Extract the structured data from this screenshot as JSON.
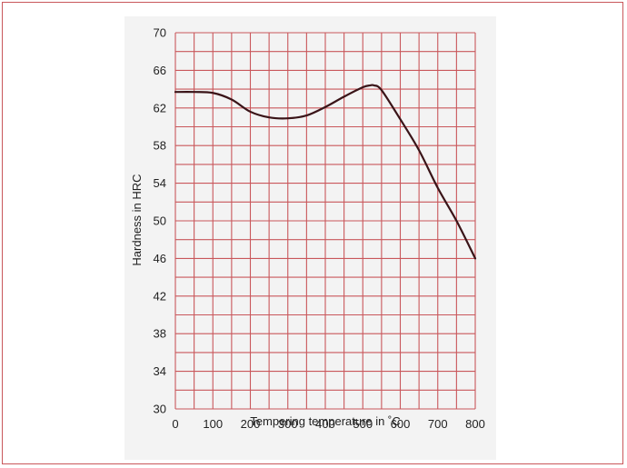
{
  "chart_data": {
    "type": "line",
    "xlabel": "Tempering temperature in ˚C",
    "ylabel": "Hardness in HRC",
    "xlim": [
      0,
      800
    ],
    "ylim": [
      30,
      70
    ],
    "x_ticks": [
      0,
      100,
      200,
      300,
      400,
      500,
      600,
      700,
      800
    ],
    "y_ticks": [
      30,
      34,
      38,
      42,
      46,
      50,
      54,
      58,
      62,
      66,
      70
    ],
    "grid": true,
    "x_grid_step": 50,
    "y_grid_step": 2,
    "series": [
      {
        "x": [
          0,
          50,
          100,
          150,
          200,
          250,
          300,
          350,
          400,
          450,
          500,
          520,
          530,
          550,
          600,
          650,
          700,
          750,
          800
        ],
        "y": [
          63.7,
          63.7,
          63.6,
          62.9,
          61.6,
          61.0,
          60.9,
          61.2,
          62.1,
          63.2,
          64.2,
          64.4,
          64.4,
          63.9,
          60.8,
          57.5,
          53.5,
          50.0,
          46.0
        ]
      }
    ]
  },
  "colors": {
    "grid": "#c9575b",
    "curve": "#3a1418",
    "frame": "#c9575b",
    "panel": "#f3f3f3"
  }
}
